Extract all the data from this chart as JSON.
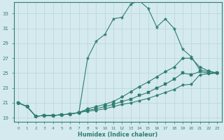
{
  "xlabel": "Humidex (Indice chaleur)",
  "bg_color": "#d5eaee",
  "line_color": "#2e7d72",
  "grid_color": "#b8d4d8",
  "xlim": [
    -0.5,
    23.5
  ],
  "ylim": [
    18.5,
    34.5
  ],
  "yticks": [
    19,
    21,
    23,
    25,
    27,
    29,
    31,
    33
  ],
  "xticks": [
    0,
    1,
    2,
    3,
    4,
    5,
    6,
    7,
    8,
    9,
    10,
    11,
    12,
    13,
    14,
    15,
    16,
    17,
    18,
    19,
    20,
    21,
    22,
    23
  ],
  "series": [
    [
      21.0,
      20.5,
      19.2,
      19.3,
      19.3,
      19.4,
      19.5,
      19.7,
      27.0,
      29.3,
      30.2,
      32.3,
      32.5,
      34.3,
      34.7,
      33.7,
      31.2,
      32.3,
      31.0,
      28.2,
      27.2,
      25.4,
      25.2,
      25.0
    ],
    [
      21.0,
      20.5,
      19.2,
      19.3,
      19.3,
      19.4,
      19.5,
      19.7,
      20.2,
      20.5,
      20.8,
      21.2,
      21.8,
      22.5,
      23.2,
      23.8,
      24.5,
      25.2,
      25.8,
      27.0,
      27.0,
      25.8,
      25.3,
      25.0
    ],
    [
      21.0,
      20.5,
      19.2,
      19.3,
      19.3,
      19.4,
      19.5,
      19.7,
      20.0,
      20.2,
      20.5,
      20.8,
      21.2,
      21.5,
      22.0,
      22.4,
      23.0,
      23.5,
      24.2,
      25.0,
      24.8,
      25.2,
      25.0,
      25.0
    ],
    [
      21.0,
      20.5,
      19.2,
      19.3,
      19.3,
      19.4,
      19.5,
      19.7,
      19.9,
      20.0,
      20.2,
      20.5,
      20.8,
      21.0,
      21.3,
      21.6,
      22.0,
      22.4,
      22.8,
      23.4,
      23.5,
      24.8,
      24.9,
      25.0
    ]
  ]
}
